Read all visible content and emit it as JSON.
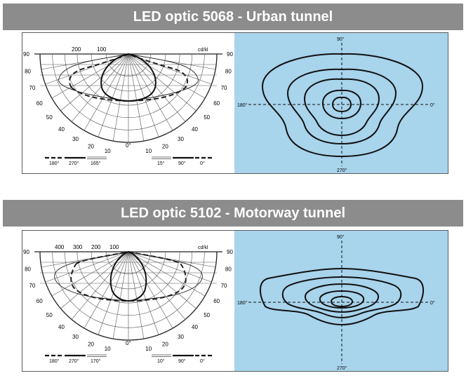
{
  "optics": [
    {
      "title": "LED optic 5068 - Urban tunnel",
      "unit": "cd/kl",
      "scale_labels": [
        "200",
        "100"
      ],
      "angle_left": [
        "90",
        "80",
        "70",
        "60",
        "50",
        "40",
        "30",
        "20",
        "10"
      ],
      "angle_right": [
        "90",
        "80",
        "70",
        "60",
        "50",
        "40",
        "30",
        "20",
        "10"
      ],
      "angle_bottom": "0°",
      "legend_left": [
        "180°",
        "270°",
        "165°"
      ],
      "legend_right": [
        "15°",
        "90°",
        "0°"
      ],
      "iso_labels": {
        "top": "90°",
        "bottom": "270°",
        "left": "180°",
        "right": "0°"
      }
    },
    {
      "title": "LED optic 5102 - Motorway tunnel",
      "unit": "cd/kl",
      "scale_labels": [
        "400",
        "300",
        "200",
        "100"
      ],
      "angle_left": [
        "90",
        "80",
        "70",
        "60",
        "50",
        "40",
        "30",
        "20",
        "10"
      ],
      "angle_right": [
        "90",
        "80",
        "70",
        "60",
        "50",
        "40",
        "30",
        "20",
        "10"
      ],
      "angle_bottom": "0°",
      "legend_left": [
        "180°",
        "270°",
        "170°"
      ],
      "legend_right": [
        "10°",
        "90°",
        "0°"
      ],
      "iso_labels": {
        "top": "90°",
        "bottom": "270°",
        "left": "180°",
        "right": "0°"
      }
    }
  ]
}
